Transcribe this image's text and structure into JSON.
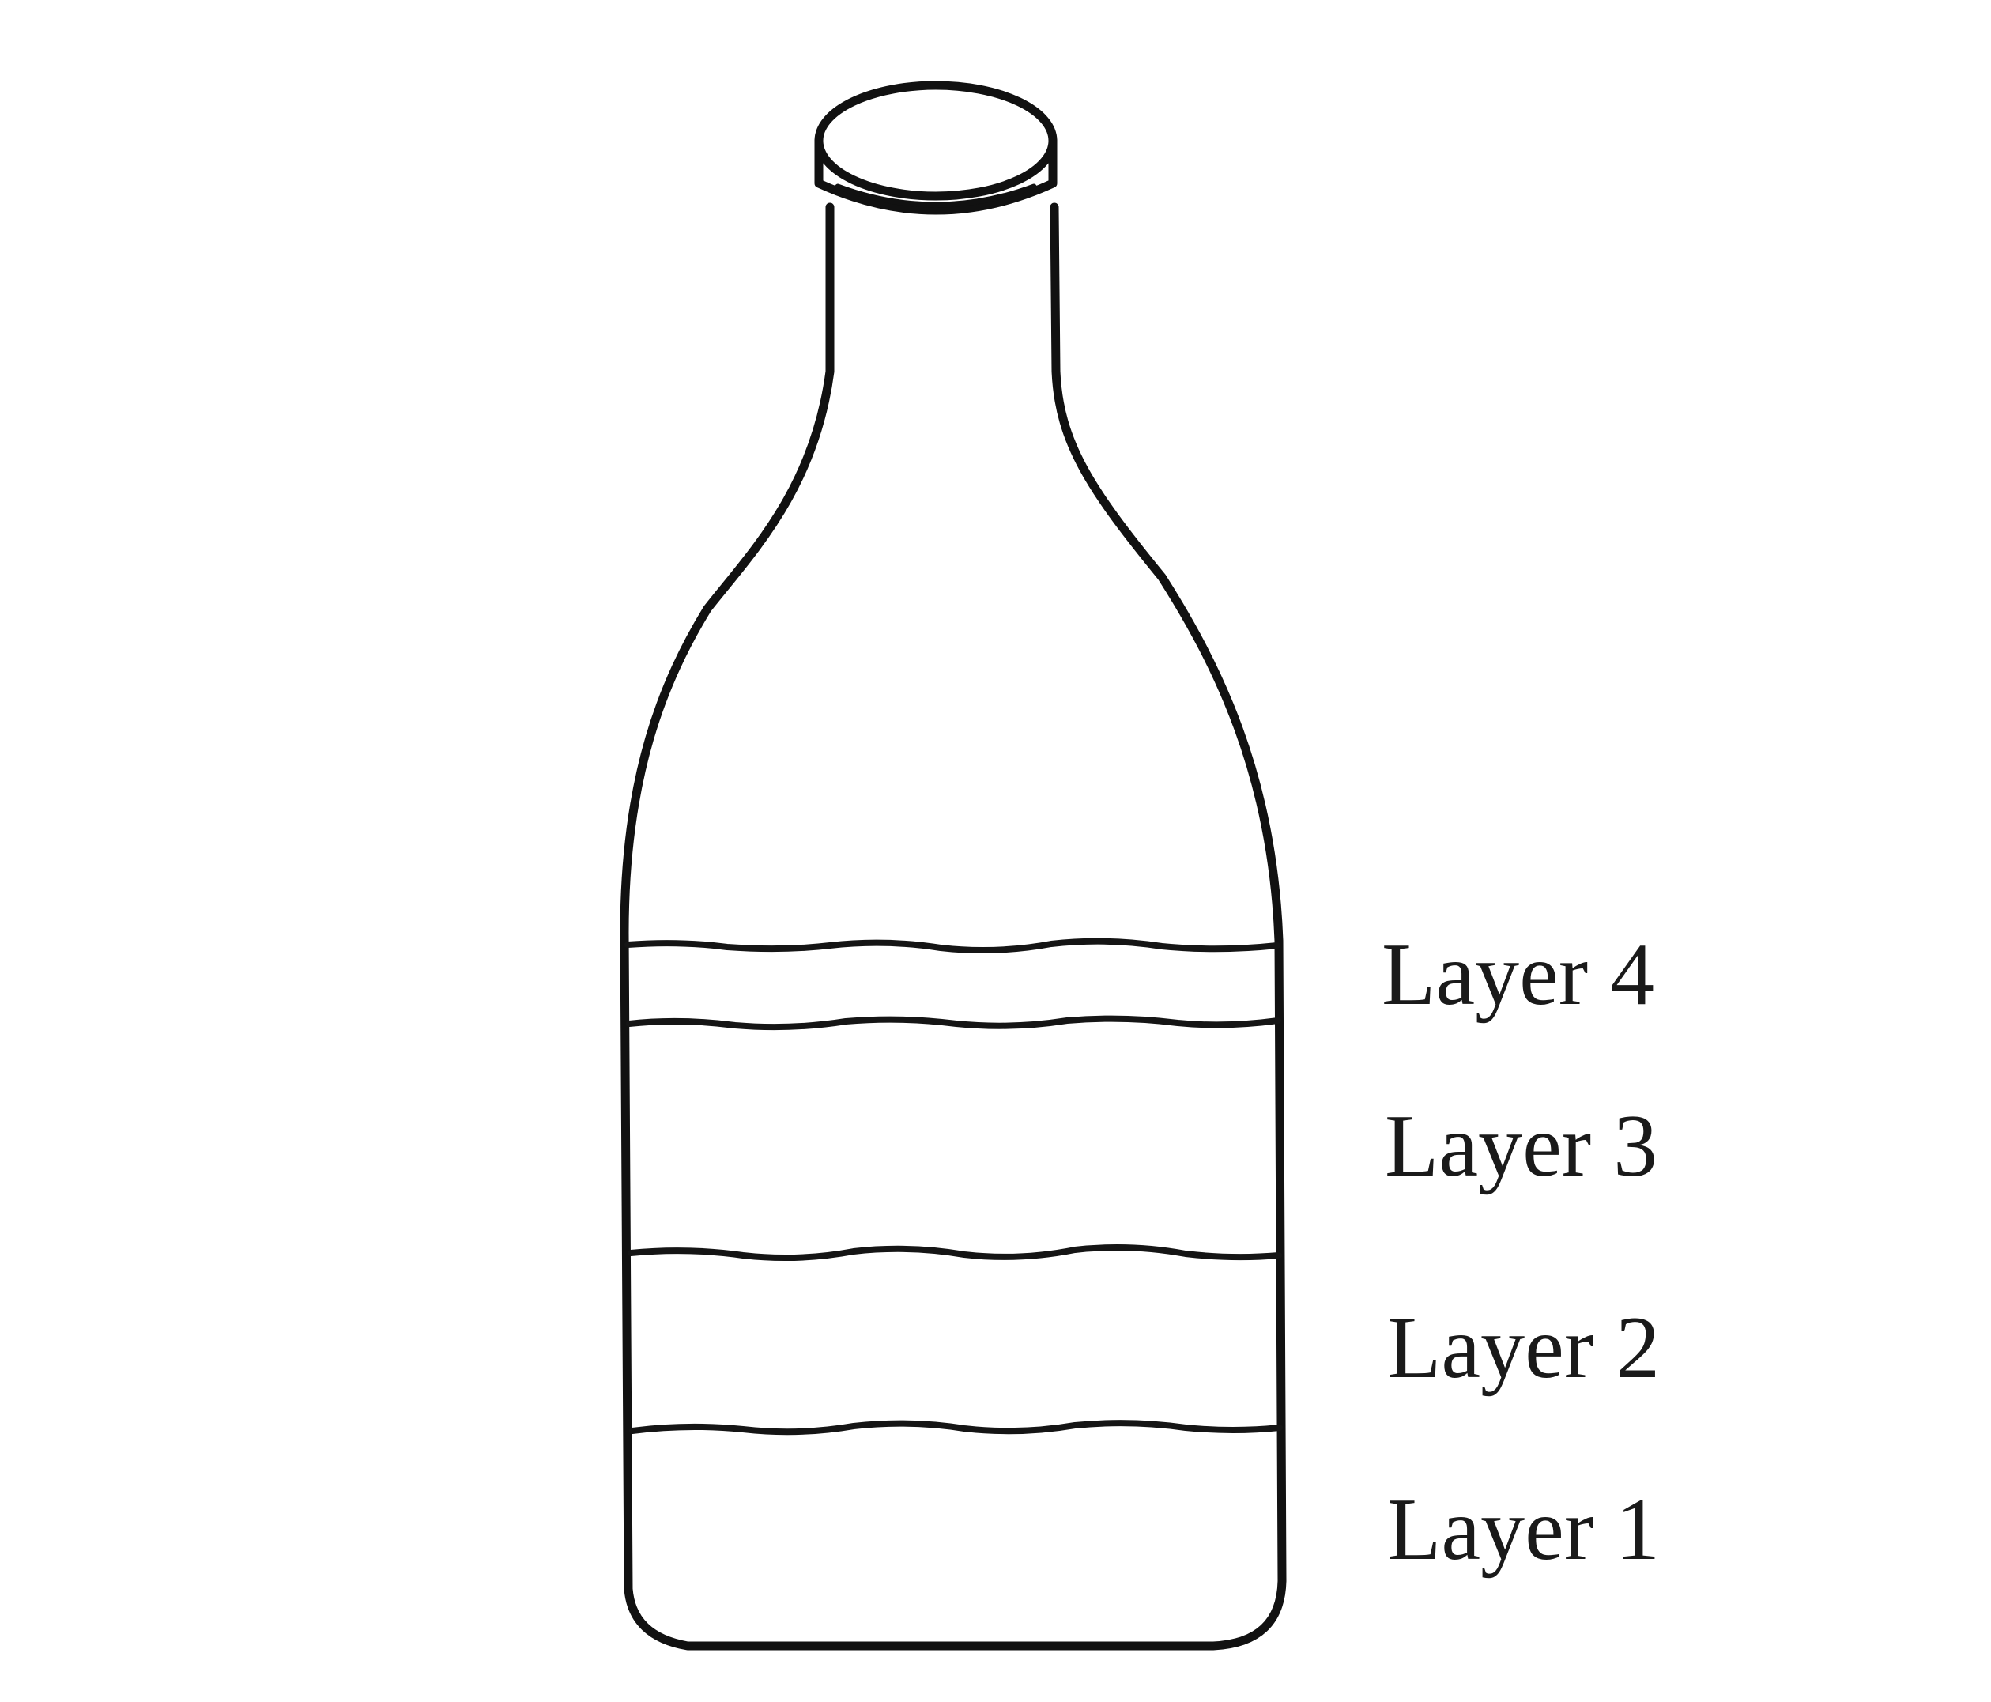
{
  "diagram": {
    "layers": [
      {
        "label": "Layer 4"
      },
      {
        "label": "Layer 3"
      },
      {
        "label": "Layer 2"
      },
      {
        "label": "Layer 1"
      }
    ]
  }
}
